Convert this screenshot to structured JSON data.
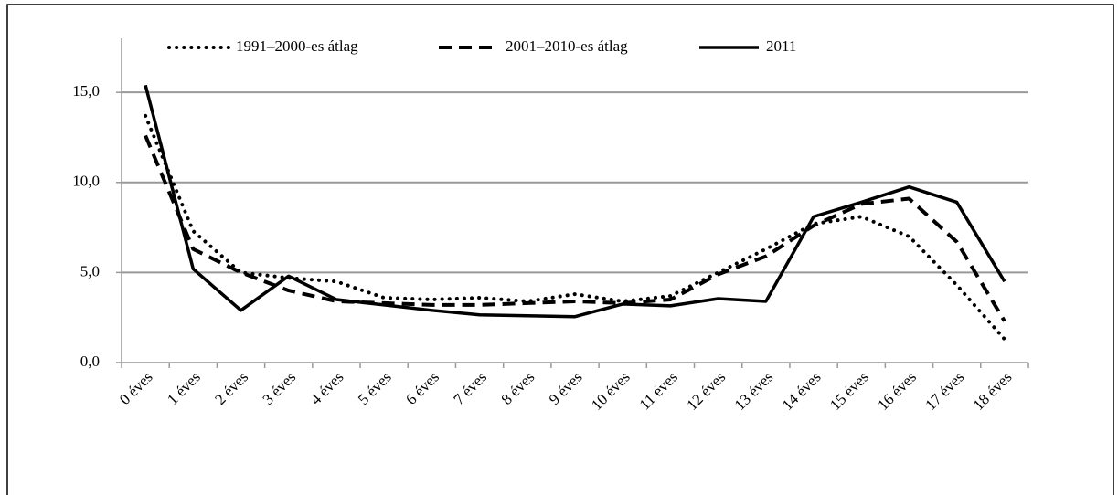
{
  "chart_data": {
    "type": "line",
    "categories": [
      "0 éves",
      "1 éves",
      "2 éves",
      "3 éves",
      "4 éves",
      "5 éves",
      "6 éves",
      "7 éves",
      "8 éves",
      "9 éves",
      "10 éves",
      "11 éves",
      "12 éves",
      "13 éves",
      "14 éves",
      "15 éves",
      "16 éves",
      "17 éves",
      "18 éves"
    ],
    "series": [
      {
        "name": "1991–2000-es átlag",
        "color": "#000000",
        "linestyle": "dotted",
        "values": [
          13.7,
          7.3,
          5.0,
          4.7,
          4.5,
          3.6,
          3.5,
          3.6,
          3.4,
          3.8,
          3.4,
          3.7,
          5.0,
          6.3,
          7.7,
          8.1,
          7.0,
          4.3,
          1.3
        ]
      },
      {
        "name": "2001–2010-es átlag",
        "color": "#000000",
        "linestyle": "dashed",
        "values": [
          12.6,
          6.3,
          5.0,
          4.0,
          3.4,
          3.3,
          3.2,
          3.2,
          3.3,
          3.4,
          3.3,
          3.5,
          4.9,
          5.9,
          7.6,
          8.8,
          9.1,
          6.7,
          2.3
        ]
      },
      {
        "name": "2011",
        "color": "#000000",
        "linestyle": "solid",
        "values": [
          15.4,
          5.2,
          2.9,
          4.8,
          3.5,
          3.2,
          2.9,
          2.65,
          2.6,
          2.55,
          3.25,
          3.15,
          3.55,
          3.4,
          8.1,
          8.9,
          9.75,
          8.9,
          4.5
        ]
      }
    ],
    "ylim": [
      0,
      18
    ],
    "yticks": [
      {
        "value": 0,
        "label": "0,0"
      },
      {
        "value": 5,
        "label": "5,0"
      },
      {
        "value": 10,
        "label": "10,0"
      },
      {
        "value": 15,
        "label": "15,0"
      }
    ],
    "grid": true,
    "legend": "top"
  }
}
